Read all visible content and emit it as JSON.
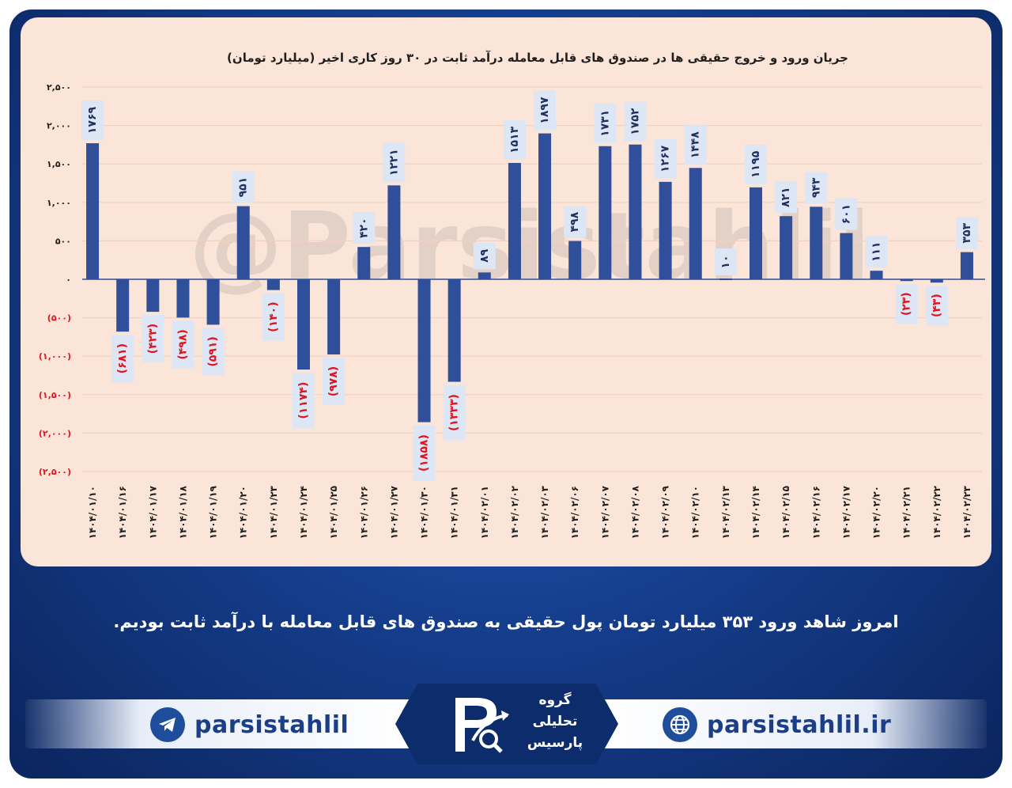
{
  "chart_data": {
    "type": "bar",
    "title": "جریان ورود و خروج حقیقی ها در صندوق های قابل معامله درآمد ثابت در ۳۰ روز کاری اخیر (میلیارد تومان)",
    "categories": [
      "۱۴۰۴/۰۱/۱۰",
      "۱۴۰۴/۰۱/۱۶",
      "۱۴۰۴/۰۱/۱۷",
      "۱۴۰۴/۰۱/۱۸",
      "۱۴۰۴/۰۱/۱۹",
      "۱۴۰۴/۰۱/۲۰",
      "۱۴۰۴/۰۱/۲۳",
      "۱۴۰۴/۰۱/۲۴",
      "۱۴۰۴/۰۱/۲۵",
      "۱۴۰۴/۰۱/۲۶",
      "۱۴۰۴/۰۱/۲۷",
      "۱۴۰۴/۰۱/۳۰",
      "۱۴۰۴/۰۱/۳۱",
      "۱۴۰۴/۰۲/۰۱",
      "۱۴۰۴/۰۲/۰۲",
      "۱۴۰۴/۰۲/۰۳",
      "۱۴۰۴/۰۲/۰۶",
      "۱۴۰۴/۰۲/۰۷",
      "۱۴۰۴/۰۲/۰۸",
      "۱۴۰۴/۰۲/۰۹",
      "۱۴۰۴/۰۲/۱۰",
      "۱۴۰۴/۰۲/۱۳",
      "۱۴۰۴/۰۲/۱۴",
      "۱۴۰۴/۰۲/۱۵",
      "۱۴۰۴/۰۲/۱۶",
      "۱۴۰۴/۰۲/۱۷",
      "۱۴۰۴/۰۲/۲۰",
      "۱۴۰۴/۰۲/۲۱",
      "۱۴۰۴/۰۲/۲۲",
      "۱۴۰۴/۰۲/۲۳"
    ],
    "values": [
      1769,
      -681,
      -423,
      -498,
      -591,
      951,
      -140,
      -1174,
      -978,
      420,
      1221,
      -1858,
      -1333,
      89,
      1513,
      1897,
      498,
      1731,
      1752,
      1267,
      1448,
      10,
      1195,
      821,
      943,
      601,
      111,
      -23,
      -43,
      353
    ],
    "data_labels": [
      "۱۷۶۹",
      "(۶۸۱)",
      "(۴۲۳)",
      "(۴۹۸)",
      "(۵۹۱)",
      "۹۵۱",
      "(۱۴۰)",
      "(۱۱۷۴)",
      "(۹۷۸)",
      "۴۲۰",
      "۱۲۲۱",
      "(۱۸۵۸)",
      "(۱۳۳۳)",
      "۸۹",
      "۱۵۱۳",
      "۱۸۹۷",
      "۴۹۸",
      "۱۷۳۱",
      "۱۷۵۲",
      "۱۲۶۷",
      "۱۴۴۸",
      "۱۰",
      "۱۱۹۵",
      "۸۲۱",
      "۹۴۳",
      "۶۰۱",
      "۱۱۱",
      "(۲۳)",
      "(۴۳)",
      "۳۵۳"
    ],
    "ylim": [
      -2500,
      2500
    ],
    "yticks": [
      2500,
      2000,
      1500,
      1000,
      500,
      0,
      -500,
      -1000,
      -1500,
      -2000,
      -2500
    ],
    "ytick_labels": [
      "۲,۵۰۰",
      "۲,۰۰۰",
      "۱,۵۰۰",
      "۱,۰۰۰",
      "۵۰۰",
      "۰",
      "(۵۰۰)",
      "(۱,۰۰۰)",
      "(۱,۵۰۰)",
      "(۲,۰۰۰)",
      "(۲,۵۰۰)"
    ],
    "grid": true,
    "colors": {
      "bar": "#2f4f9a",
      "positive_label": "#1f2f5e",
      "negative_label": "#e0141e",
      "label_box": "#dde6f4",
      "grid": "#f1d2c2",
      "axis": "#2f4f9a"
    }
  },
  "watermark": "@Parsistahlil",
  "caption": "امروز شاهد ورود ۳۵۳ میلیارد تومان پول حقیقی به صندوق های قابل معامله با درآمد ثابت بودیم.",
  "footer": {
    "telegram_handle": "parsistahlil",
    "website": "parsistahlil.ir",
    "telegram_icon": "telegram-icon",
    "globe_icon": "globe-icon",
    "logo": {
      "lines": [
        "گروه",
        "تحلیلی",
        "پارسیس"
      ]
    }
  }
}
